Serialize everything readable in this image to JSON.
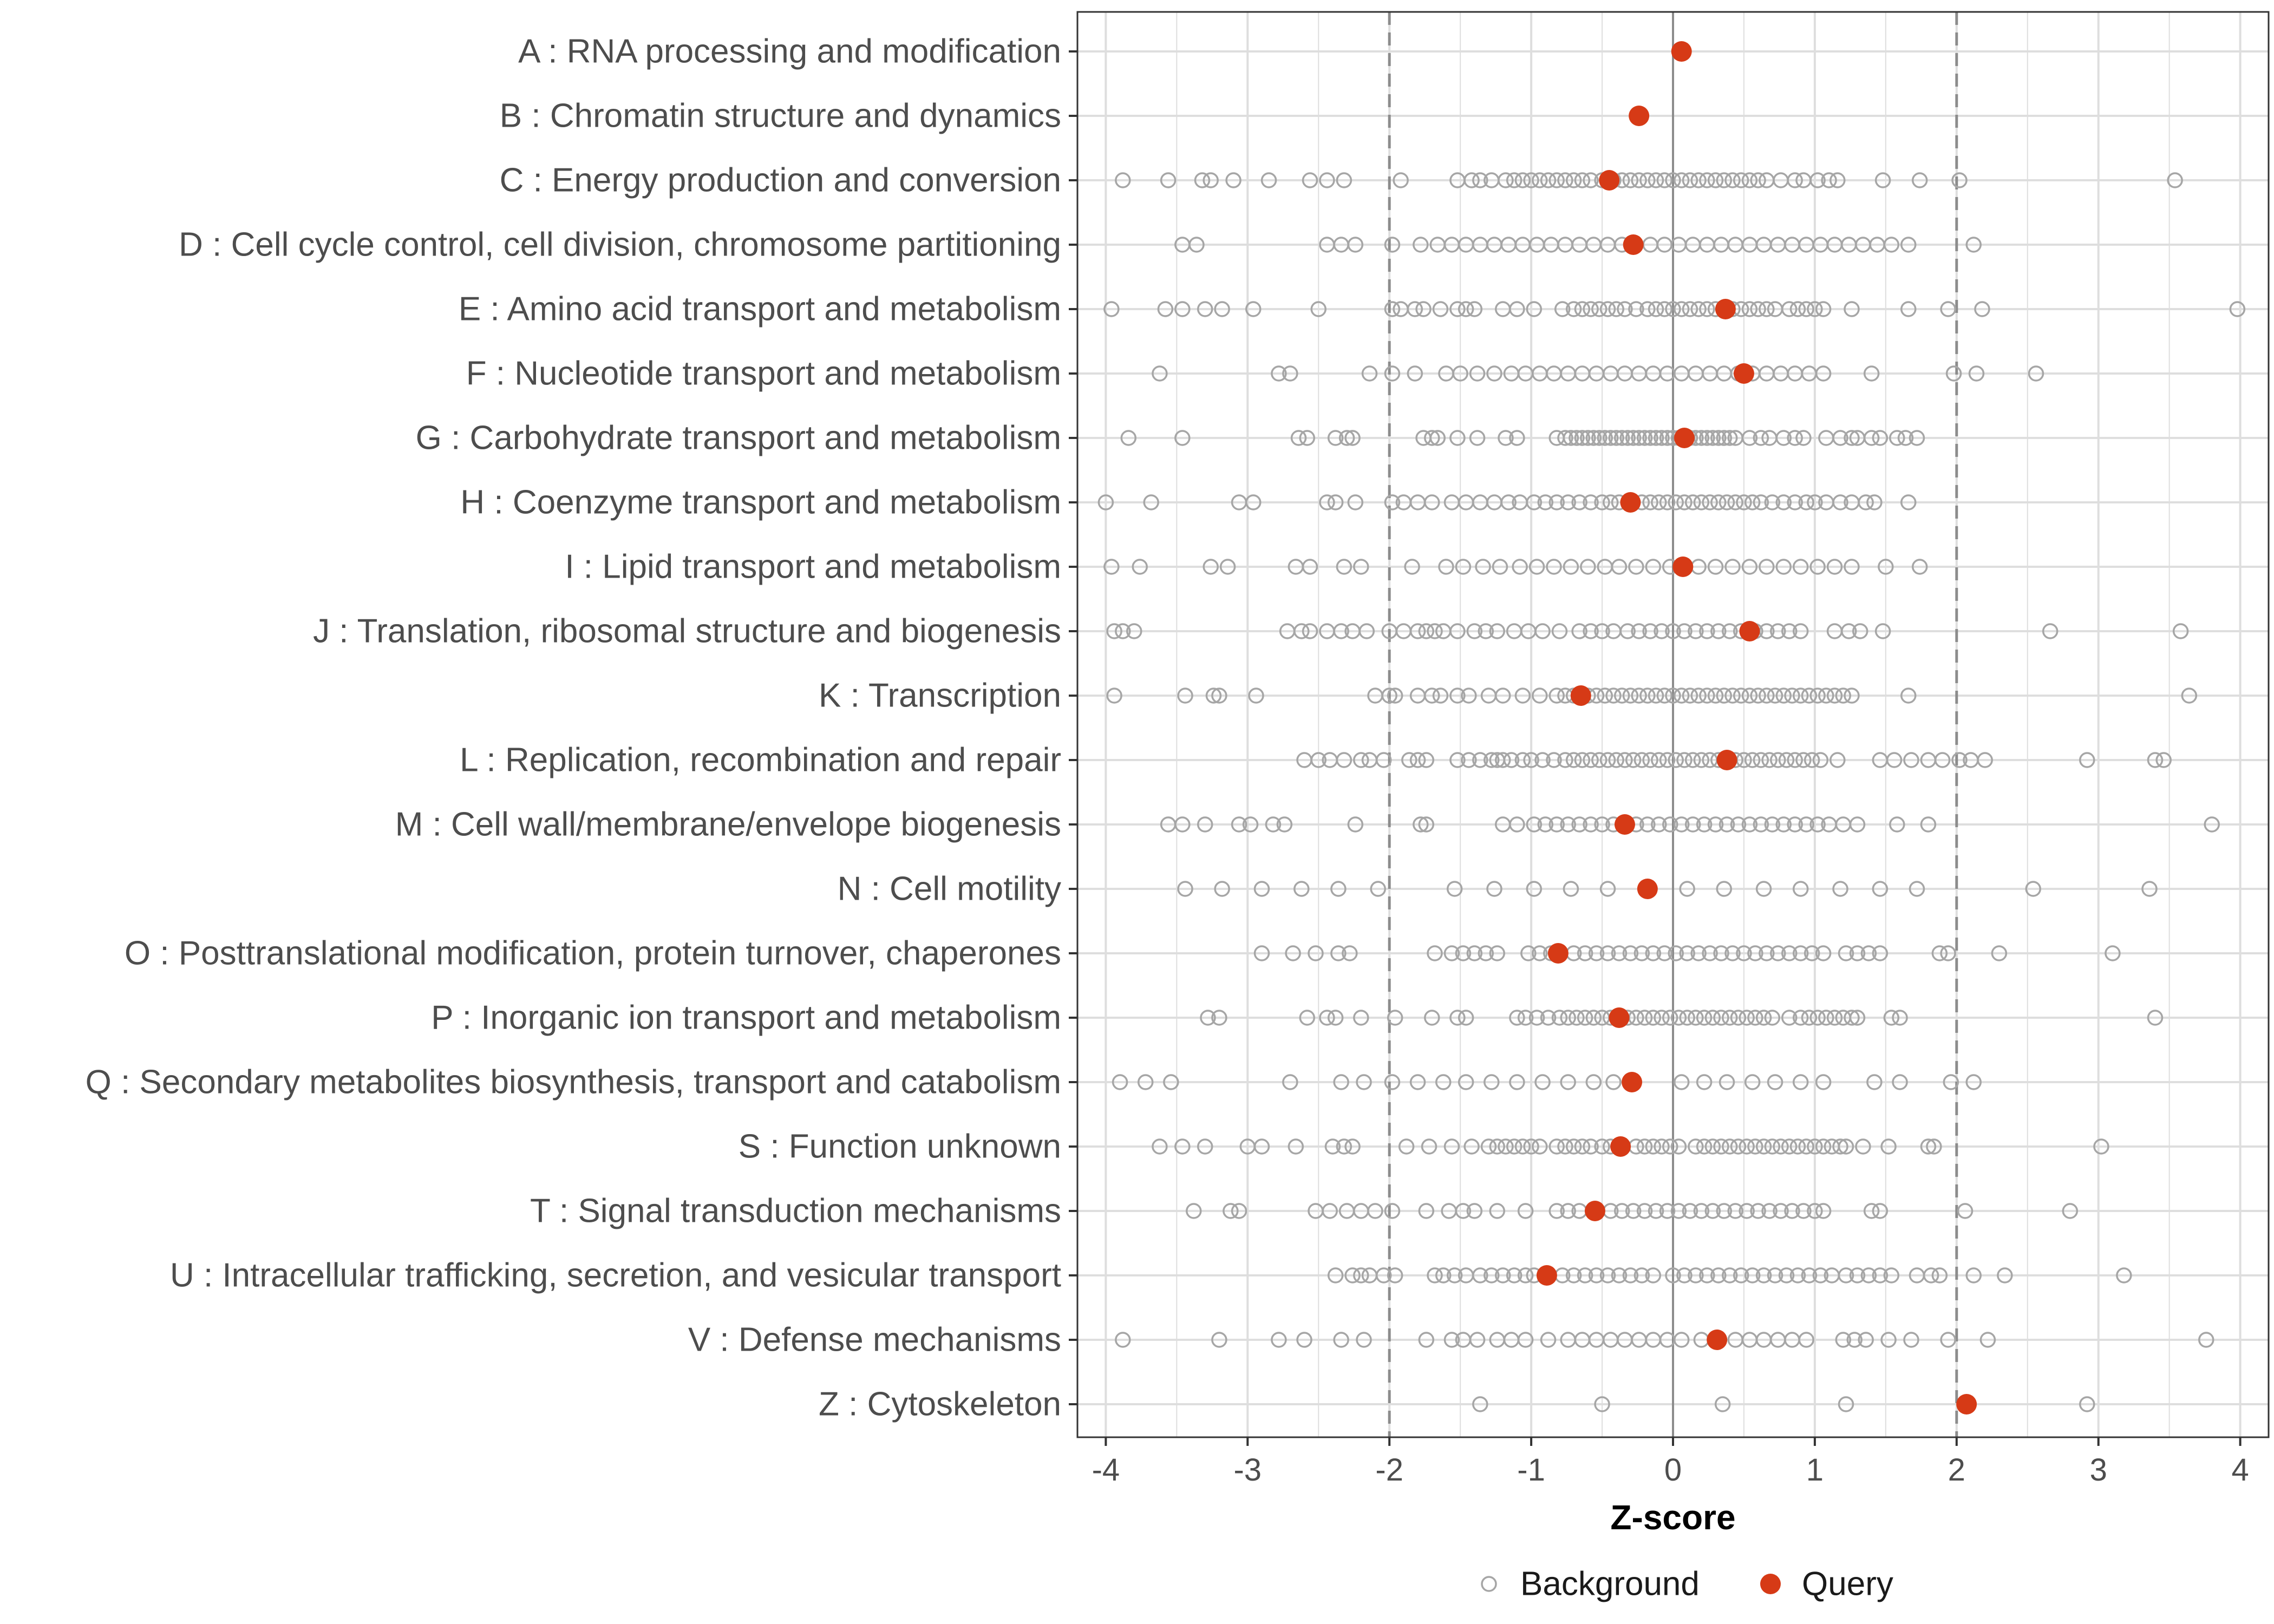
{
  "chart_data": {
    "type": "scatter",
    "xlabel": "Z-score",
    "xlim": [
      -4.2,
      4.2
    ],
    "xticks": [
      -4,
      -3,
      -2,
      -1,
      0,
      1,
      2,
      3,
      4
    ],
    "xtick_labels": [
      "-4",
      "-3",
      "-2",
      "-1",
      "0",
      "1",
      "2",
      "3",
      "4"
    ],
    "threshold_lines": [
      -2,
      2
    ],
    "zero_line": 0,
    "legend_position": "bottom",
    "colors": {
      "background": "#a6a6a6",
      "query": "#d63a16",
      "grid": "#dedede",
      "panel_border": "#333333",
      "threshold": "#8c8c8c",
      "zero_line": "#8c8c8c"
    },
    "legend": [
      {
        "name": "Background",
        "style": "open-circle"
      },
      {
        "name": "Query",
        "style": "filled-circle"
      }
    ],
    "categories": [
      {
        "label": "A : RNA processing and modification",
        "query": 0.06,
        "background": []
      },
      {
        "label": "B : Chromatin structure and dynamics",
        "query": -0.24,
        "background": []
      },
      {
        "label": "C : Energy production and conversion",
        "query": -0.45,
        "background": [
          -3.88,
          -3.56,
          -3.32,
          -3.26,
          -3.1,
          -2.85,
          -2.56,
          -2.44,
          -2.32,
          -1.92,
          -1.52,
          -1.42,
          -1.36,
          -1.28,
          -1.18,
          -1.12,
          -1.06,
          -1.0,
          -0.94,
          -0.88,
          -0.82,
          -0.76,
          -0.7,
          -0.64,
          -0.58,
          -0.5,
          -0.42,
          -0.36,
          -0.3,
          -0.24,
          -0.18,
          -0.12,
          -0.06,
          0.0,
          0.06,
          0.12,
          0.18,
          0.24,
          0.3,
          0.36,
          0.42,
          0.48,
          0.54,
          0.6,
          0.66,
          0.76,
          0.86,
          0.92,
          1.02,
          1.1,
          1.16,
          1.48,
          1.74,
          2.02,
          3.54
        ]
      },
      {
        "label": "D : Cell cycle control, cell division, chromosome partitioning",
        "query": -0.28,
        "background": [
          -3.46,
          -3.36,
          -2.44,
          -2.34,
          -2.24,
          -1.98,
          -1.78,
          -1.66,
          -1.56,
          -1.46,
          -1.36,
          -1.26,
          -1.16,
          -1.06,
          -0.96,
          -0.86,
          -0.76,
          -0.66,
          -0.56,
          -0.46,
          -0.36,
          -0.16,
          -0.06,
          0.04,
          0.14,
          0.24,
          0.34,
          0.44,
          0.54,
          0.64,
          0.74,
          0.84,
          0.94,
          1.04,
          1.14,
          1.24,
          1.34,
          1.44,
          1.54,
          1.66,
          2.12
        ]
      },
      {
        "label": "E : Amino acid transport and metabolism",
        "query": 0.37,
        "background": [
          -3.96,
          -3.58,
          -3.46,
          -3.3,
          -3.18,
          -2.96,
          -2.5,
          -1.98,
          -1.92,
          -1.82,
          -1.76,
          -1.64,
          -1.52,
          -1.46,
          -1.4,
          -1.2,
          -1.1,
          -0.98,
          -0.78,
          -0.7,
          -0.64,
          -0.58,
          -0.52,
          -0.46,
          -0.4,
          -0.34,
          -0.26,
          -0.18,
          -0.12,
          -0.06,
          0.0,
          0.06,
          0.12,
          0.18,
          0.24,
          0.3,
          0.42,
          0.48,
          0.54,
          0.6,
          0.66,
          0.72,
          0.82,
          0.88,
          0.94,
          1.0,
          1.06,
          1.26,
          1.66,
          1.94,
          2.18,
          3.98
        ]
      },
      {
        "label": "F : Nucleotide transport and metabolism",
        "query": 0.5,
        "background": [
          -3.62,
          -2.78,
          -2.7,
          -2.14,
          -1.98,
          -1.82,
          -1.6,
          -1.5,
          -1.38,
          -1.26,
          -1.14,
          -1.04,
          -0.94,
          -0.84,
          -0.74,
          -0.64,
          -0.54,
          -0.44,
          -0.34,
          -0.24,
          -0.14,
          -0.04,
          0.06,
          0.16,
          0.26,
          0.36,
          0.46,
          0.56,
          0.66,
          0.76,
          0.86,
          0.96,
          1.06,
          1.4,
          1.98,
          2.14,
          2.56
        ]
      },
      {
        "label": "G : Carbohydrate transport and metabolism",
        "query": 0.08,
        "background": [
          -3.84,
          -3.46,
          -2.64,
          -2.58,
          -2.38,
          -2.3,
          -2.26,
          -1.76,
          -1.7,
          -1.66,
          -1.52,
          -1.38,
          -1.18,
          -1.1,
          -0.82,
          -0.76,
          -0.72,
          -0.68,
          -0.64,
          -0.6,
          -0.56,
          -0.52,
          -0.48,
          -0.44,
          -0.4,
          -0.36,
          -0.32,
          -0.28,
          -0.24,
          -0.2,
          -0.16,
          -0.12,
          -0.08,
          -0.04,
          0.0,
          0.04,
          0.12,
          0.16,
          0.2,
          0.24,
          0.28,
          0.32,
          0.36,
          0.4,
          0.44,
          0.54,
          0.62,
          0.68,
          0.78,
          0.86,
          0.92,
          1.08,
          1.18,
          1.26,
          1.3,
          1.4,
          1.46,
          1.58,
          1.64,
          1.72
        ]
      },
      {
        "label": "H : Coenzyme transport and metabolism",
        "query": -0.3,
        "background": [
          -4.0,
          -3.68,
          -3.06,
          -2.96,
          -2.44,
          -2.38,
          -2.24,
          -1.98,
          -1.9,
          -1.8,
          -1.7,
          -1.56,
          -1.46,
          -1.36,
          -1.26,
          -1.16,
          -1.08,
          -0.98,
          -0.9,
          -0.82,
          -0.74,
          -0.66,
          -0.58,
          -0.5,
          -0.44,
          -0.38,
          -0.22,
          -0.16,
          -0.1,
          -0.04,
          0.02,
          0.08,
          0.14,
          0.2,
          0.26,
          0.32,
          0.38,
          0.44,
          0.5,
          0.56,
          0.62,
          0.7,
          0.78,
          0.86,
          0.94,
          1.0,
          1.08,
          1.18,
          1.26,
          1.36,
          1.42,
          1.66
        ]
      },
      {
        "label": "I : Lipid transport and metabolism",
        "query": 0.07,
        "background": [
          -3.96,
          -3.76,
          -3.26,
          -3.14,
          -2.66,
          -2.56,
          -2.32,
          -2.2,
          -1.84,
          -1.6,
          -1.48,
          -1.34,
          -1.22,
          -1.08,
          -0.96,
          -0.84,
          -0.72,
          -0.6,
          -0.48,
          -0.38,
          -0.26,
          -0.14,
          -0.02,
          0.18,
          0.3,
          0.42,
          0.54,
          0.66,
          0.78,
          0.9,
          1.02,
          1.14,
          1.26,
          1.5,
          1.74
        ]
      },
      {
        "label": "J : Translation, ribosomal structure and biogenesis",
        "query": 0.54,
        "background": [
          -3.94,
          -3.88,
          -3.8,
          -2.72,
          -2.62,
          -2.56,
          -2.44,
          -2.34,
          -2.26,
          -2.16,
          -2.0,
          -1.9,
          -1.8,
          -1.74,
          -1.68,
          -1.62,
          -1.52,
          -1.4,
          -1.32,
          -1.24,
          -1.12,
          -1.02,
          -0.92,
          -0.8,
          -0.66,
          -0.58,
          -0.5,
          -0.42,
          -0.32,
          -0.24,
          -0.16,
          -0.08,
          0.0,
          0.08,
          0.16,
          0.24,
          0.32,
          0.4,
          0.48,
          0.58,
          0.66,
          0.74,
          0.82,
          0.9,
          1.14,
          1.24,
          1.32,
          1.48,
          2.66,
          3.58
        ]
      },
      {
        "label": "K : Transcription",
        "query": -0.65,
        "background": [
          -3.94,
          -3.44,
          -3.24,
          -3.2,
          -2.94,
          -2.1,
          -2.0,
          -1.96,
          -1.8,
          -1.7,
          -1.64,
          -1.52,
          -1.44,
          -1.3,
          -1.2,
          -1.06,
          -0.94,
          -0.82,
          -0.76,
          -0.7,
          -0.6,
          -0.54,
          -0.48,
          -0.42,
          -0.36,
          -0.3,
          -0.24,
          -0.18,
          -0.12,
          -0.06,
          0.0,
          0.06,
          0.12,
          0.18,
          0.24,
          0.3,
          0.36,
          0.42,
          0.48,
          0.54,
          0.6,
          0.66,
          0.72,
          0.78,
          0.84,
          0.9,
          0.96,
          1.02,
          1.08,
          1.14,
          1.2,
          1.26,
          1.66,
          3.64
        ]
      },
      {
        "label": "L : Replication, recombination and repair",
        "query": 0.38,
        "background": [
          -2.6,
          -2.5,
          -2.42,
          -2.32,
          -2.2,
          -2.14,
          -2.04,
          -1.86,
          -1.8,
          -1.74,
          -1.52,
          -1.44,
          -1.36,
          -1.28,
          -1.24,
          -1.2,
          -1.14,
          -1.06,
          -1.0,
          -0.92,
          -0.84,
          -0.76,
          -0.7,
          -0.64,
          -0.58,
          -0.52,
          -0.46,
          -0.4,
          -0.34,
          -0.28,
          -0.22,
          -0.16,
          -0.1,
          -0.04,
          0.02,
          0.08,
          0.14,
          0.2,
          0.26,
          0.32,
          0.44,
          0.5,
          0.56,
          0.62,
          0.68,
          0.74,
          0.8,
          0.86,
          0.92,
          0.98,
          1.04,
          1.16,
          1.46,
          1.56,
          1.68,
          1.8,
          1.9,
          2.02,
          2.1,
          2.2,
          2.92,
          3.4,
          3.46
        ]
      },
      {
        "label": "M : Cell wall/membrane/envelope biogenesis",
        "query": -0.34,
        "background": [
          -3.56,
          -3.46,
          -3.3,
          -3.06,
          -2.98,
          -2.82,
          -2.74,
          -2.24,
          -1.78,
          -1.74,
          -1.2,
          -1.1,
          -0.98,
          -0.9,
          -0.82,
          -0.74,
          -0.66,
          -0.58,
          -0.5,
          -0.42,
          -0.26,
          -0.18,
          -0.1,
          -0.02,
          0.06,
          0.14,
          0.22,
          0.3,
          0.38,
          0.46,
          0.54,
          0.62,
          0.7,
          0.78,
          0.86,
          0.94,
          1.02,
          1.1,
          1.2,
          1.3,
          1.58,
          1.8,
          3.8
        ]
      },
      {
        "label": "N : Cell motility",
        "query": -0.18,
        "background": [
          -3.44,
          -3.18,
          -2.9,
          -2.62,
          -2.36,
          -2.08,
          -1.54,
          -1.26,
          -0.98,
          -0.72,
          -0.46,
          0.1,
          0.36,
          0.64,
          0.9,
          1.18,
          1.46,
          1.72,
          2.54,
          3.36
        ]
      },
      {
        "label": "O : Posttranslational modification, protein turnover, chaperones",
        "query": -0.81,
        "background": [
          -2.9,
          -2.68,
          -2.52,
          -2.36,
          -2.28,
          -1.68,
          -1.56,
          -1.48,
          -1.4,
          -1.32,
          -1.24,
          -1.02,
          -0.94,
          -0.86,
          -0.7,
          -0.62,
          -0.54,
          -0.46,
          -0.38,
          -0.3,
          -0.22,
          -0.14,
          -0.06,
          0.02,
          0.1,
          0.18,
          0.26,
          0.34,
          0.42,
          0.5,
          0.58,
          0.66,
          0.74,
          0.82,
          0.9,
          0.98,
          1.06,
          1.22,
          1.3,
          1.38,
          1.46,
          1.88,
          1.94,
          2.3,
          3.1
        ]
      },
      {
        "label": "P : Inorganic ion transport and metabolism",
        "query": -0.38,
        "background": [
          -3.28,
          -3.2,
          -2.58,
          -2.44,
          -2.38,
          -2.2,
          -1.96,
          -1.7,
          -1.52,
          -1.46,
          -1.1,
          -1.04,
          -0.96,
          -0.88,
          -0.8,
          -0.74,
          -0.68,
          -0.62,
          -0.56,
          -0.5,
          -0.44,
          -0.32,
          -0.26,
          -0.2,
          -0.14,
          -0.08,
          -0.02,
          0.04,
          0.1,
          0.16,
          0.22,
          0.28,
          0.34,
          0.4,
          0.46,
          0.52,
          0.58,
          0.64,
          0.7,
          0.82,
          0.9,
          0.96,
          1.02,
          1.08,
          1.14,
          1.2,
          1.26,
          1.3,
          1.54,
          1.6,
          3.4
        ]
      },
      {
        "label": "Q : Secondary metabolites biosynthesis, transport and catabolism",
        "query": -0.29,
        "background": [
          -3.9,
          -3.72,
          -3.54,
          -2.7,
          -2.34,
          -2.18,
          -1.98,
          -1.8,
          -1.62,
          -1.46,
          -1.28,
          -1.1,
          -0.92,
          -0.74,
          -0.56,
          -0.42,
          0.06,
          0.22,
          0.38,
          0.56,
          0.72,
          0.9,
          1.06,
          1.42,
          1.6,
          1.96,
          2.12
        ]
      },
      {
        "label": "S : Function unknown",
        "query": -0.37,
        "background": [
          -3.62,
          -3.46,
          -3.3,
          -3.0,
          -2.9,
          -2.66,
          -2.4,
          -2.32,
          -2.26,
          -1.88,
          -1.72,
          -1.56,
          -1.42,
          -1.3,
          -1.24,
          -1.18,
          -1.12,
          -1.06,
          -1.0,
          -0.94,
          -0.82,
          -0.76,
          -0.7,
          -0.64,
          -0.58,
          -0.5,
          -0.44,
          -0.26,
          -0.2,
          -0.14,
          -0.08,
          -0.02,
          0.04,
          0.16,
          0.22,
          0.28,
          0.34,
          0.4,
          0.46,
          0.52,
          0.58,
          0.64,
          0.7,
          0.76,
          0.82,
          0.88,
          0.94,
          1.0,
          1.06,
          1.12,
          1.18,
          1.22,
          1.34,
          1.52,
          1.8,
          1.84,
          3.02
        ]
      },
      {
        "label": "T : Signal transduction mechanisms",
        "query": -0.55,
        "background": [
          -3.38,
          -3.12,
          -3.06,
          -2.52,
          -2.42,
          -2.3,
          -2.2,
          -2.1,
          -1.98,
          -1.74,
          -1.58,
          -1.48,
          -1.4,
          -1.24,
          -1.04,
          -0.82,
          -0.74,
          -0.66,
          -0.44,
          -0.36,
          -0.28,
          -0.2,
          -0.12,
          -0.04,
          0.04,
          0.12,
          0.2,
          0.28,
          0.36,
          0.44,
          0.52,
          0.6,
          0.68,
          0.76,
          0.84,
          0.92,
          1.0,
          1.06,
          1.4,
          1.46,
          2.06,
          2.8
        ]
      },
      {
        "label": "U : Intracellular trafficking, secretion, and vesicular transport",
        "query": -0.89,
        "background": [
          -2.38,
          -2.26,
          -2.2,
          -2.14,
          -2.04,
          -1.96,
          -1.68,
          -1.62,
          -1.54,
          -1.46,
          -1.36,
          -1.28,
          -1.2,
          -1.12,
          -1.04,
          -0.98,
          -0.78,
          -0.7,
          -0.62,
          -0.54,
          -0.46,
          -0.38,
          -0.3,
          -0.22,
          -0.14,
          0.0,
          0.08,
          0.16,
          0.24,
          0.32,
          0.4,
          0.48,
          0.56,
          0.64,
          0.72,
          0.8,
          0.88,
          0.96,
          1.04,
          1.12,
          1.22,
          1.3,
          1.38,
          1.46,
          1.54,
          1.72,
          1.82,
          1.88,
          2.12,
          2.34,
          3.18
        ]
      },
      {
        "label": "V : Defense mechanisms",
        "query": 0.31,
        "background": [
          -3.88,
          -3.2,
          -2.78,
          -2.6,
          -2.34,
          -2.18,
          -1.74,
          -1.56,
          -1.48,
          -1.38,
          -1.24,
          -1.14,
          -1.04,
          -0.88,
          -0.74,
          -0.64,
          -0.54,
          -0.44,
          -0.34,
          -0.24,
          -0.14,
          -0.04,
          0.06,
          0.2,
          0.44,
          0.54,
          0.64,
          0.74,
          0.84,
          0.94,
          1.2,
          1.28,
          1.36,
          1.52,
          1.68,
          1.94,
          2.22,
          3.76
        ]
      },
      {
        "label": "Z : Cytoskeleton",
        "query": 2.07,
        "background": [
          -1.36,
          -0.5,
          0.35,
          1.22,
          2.92
        ]
      }
    ]
  }
}
